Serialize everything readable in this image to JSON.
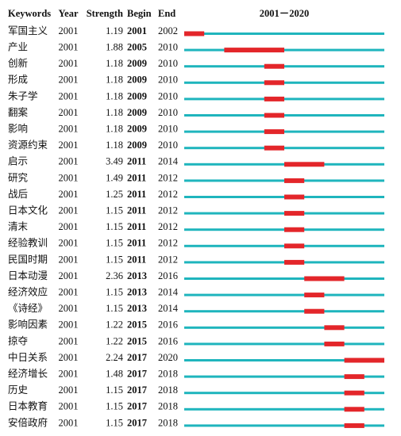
{
  "chart_data": {
    "type": "burst",
    "columns": [
      "Keywords",
      "Year",
      "Strength",
      "Begin",
      "End"
    ],
    "range_title": "2001－2020",
    "xlim": [
      2001,
      2020
    ],
    "line_color": "#1fb5bd",
    "burst_color": "#e3262a",
    "rows": [
      {
        "keyword": "军国主义",
        "year": 2001,
        "strength": 1.19,
        "begin": 2001,
        "end": 2002
      },
      {
        "keyword": "产业",
        "year": 2001,
        "strength": 1.88,
        "begin": 2005,
        "end": 2010
      },
      {
        "keyword": "创新",
        "year": 2001,
        "strength": 1.18,
        "begin": 2009,
        "end": 2010
      },
      {
        "keyword": "形成",
        "year": 2001,
        "strength": 1.18,
        "begin": 2009,
        "end": 2010
      },
      {
        "keyword": "朱子学",
        "year": 2001,
        "strength": 1.18,
        "begin": 2009,
        "end": 2010
      },
      {
        "keyword": "翻案",
        "year": 2001,
        "strength": 1.18,
        "begin": 2009,
        "end": 2010
      },
      {
        "keyword": "影响",
        "year": 2001,
        "strength": 1.18,
        "begin": 2009,
        "end": 2010
      },
      {
        "keyword": "资源约束",
        "year": 2001,
        "strength": 1.18,
        "begin": 2009,
        "end": 2010
      },
      {
        "keyword": "启示",
        "year": 2001,
        "strength": 3.49,
        "begin": 2011,
        "end": 2014
      },
      {
        "keyword": "研究",
        "year": 2001,
        "strength": 1.49,
        "begin": 2011,
        "end": 2012
      },
      {
        "keyword": "战后",
        "year": 2001,
        "strength": 1.25,
        "begin": 2011,
        "end": 2012
      },
      {
        "keyword": "日本文化",
        "year": 2001,
        "strength": 1.15,
        "begin": 2011,
        "end": 2012
      },
      {
        "keyword": "清末",
        "year": 2001,
        "strength": 1.15,
        "begin": 2011,
        "end": 2012
      },
      {
        "keyword": "经验教训",
        "year": 2001,
        "strength": 1.15,
        "begin": 2011,
        "end": 2012
      },
      {
        "keyword": "民国时期",
        "year": 2001,
        "strength": 1.15,
        "begin": 2011,
        "end": 2012
      },
      {
        "keyword": "日本动漫",
        "year": 2001,
        "strength": 2.36,
        "begin": 2013,
        "end": 2016
      },
      {
        "keyword": "经济效应",
        "year": 2001,
        "strength": 1.15,
        "begin": 2013,
        "end": 2014
      },
      {
        "keyword": "《诗经》",
        "year": 2001,
        "strength": 1.15,
        "begin": 2013,
        "end": 2014
      },
      {
        "keyword": "影响因素",
        "year": 2001,
        "strength": 1.22,
        "begin": 2015,
        "end": 2016
      },
      {
        "keyword": "掠夺",
        "year": 2001,
        "strength": 1.22,
        "begin": 2015,
        "end": 2016
      },
      {
        "keyword": "中日关系",
        "year": 2001,
        "strength": 2.24,
        "begin": 2017,
        "end": 2020
      },
      {
        "keyword": "经济增长",
        "year": 2001,
        "strength": 1.48,
        "begin": 2017,
        "end": 2018
      },
      {
        "keyword": "历史",
        "year": 2001,
        "strength": 1.15,
        "begin": 2017,
        "end": 2018
      },
      {
        "keyword": "日本教育",
        "year": 2001,
        "strength": 1.15,
        "begin": 2017,
        "end": 2018
      },
      {
        "keyword": "安倍政府",
        "year": 2001,
        "strength": 1.15,
        "begin": 2017,
        "end": 2018
      }
    ]
  }
}
